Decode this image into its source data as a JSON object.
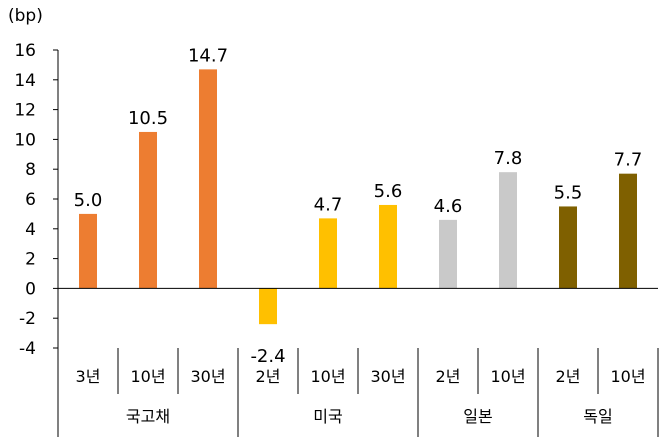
{
  "chart_data": {
    "type": "bar",
    "unit_label": "(bp)",
    "ylim": [
      -4,
      16
    ],
    "yticks": [
      "16",
      "14",
      "12",
      "10",
      "8",
      "6",
      "4",
      "2",
      "0",
      "-2",
      "-4"
    ],
    "groups": [
      {
        "name": "국고채",
        "color": "#ED7D31",
        "bars": [
          {
            "tenor": "3년",
            "value": 5.0,
            "label": "5.0"
          },
          {
            "tenor": "10년",
            "value": 10.5,
            "label": "10.5"
          },
          {
            "tenor": "30년",
            "value": 14.7,
            "label": "14.7"
          }
        ]
      },
      {
        "name": "미국",
        "color": "#FFC000",
        "bars": [
          {
            "tenor": "2년",
            "value": -2.4,
            "label": "-2.4"
          },
          {
            "tenor": "10년",
            "value": 4.7,
            "label": "4.7"
          },
          {
            "tenor": "30년",
            "value": 5.6,
            "label": "5.6"
          }
        ]
      },
      {
        "name": "일본",
        "color": "#C9C9C9",
        "bars": [
          {
            "tenor": "2년",
            "value": 4.6,
            "label": "4.6"
          },
          {
            "tenor": "10년",
            "value": 7.8,
            "label": "7.8"
          }
        ]
      },
      {
        "name": "독일",
        "color": "#7F6000",
        "bars": [
          {
            "tenor": "2년",
            "value": 5.5,
            "label": "5.5"
          },
          {
            "tenor": "10년",
            "value": 7.7,
            "label": "7.7"
          }
        ]
      }
    ],
    "grid": false,
    "legend": "none"
  }
}
